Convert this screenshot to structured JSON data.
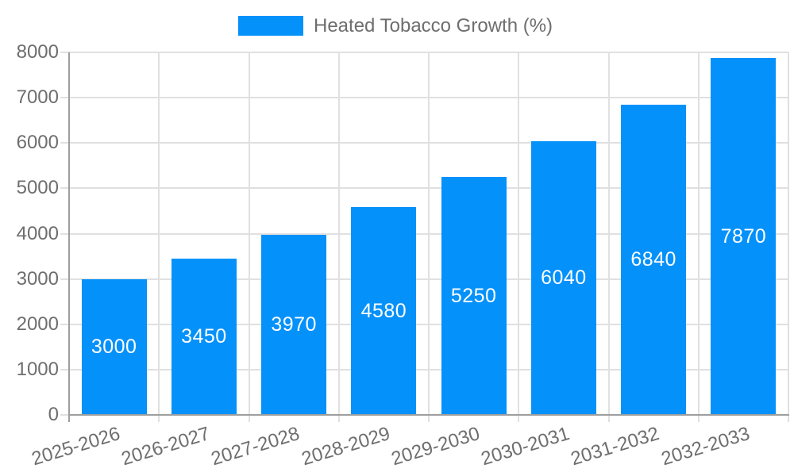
{
  "legend": {
    "label": "Heated Tobacco Growth (%)"
  },
  "colors": {
    "bar": "#0591fa",
    "grid": "#e0e0e0",
    "axis": "#9e9e9e",
    "tick_label": "#6e6e6e",
    "legend_label": "#6e6e6e",
    "bar_label": "#ffffff",
    "background": "#ffffff"
  },
  "chart_data": {
    "type": "bar",
    "title": "",
    "xlabel": "",
    "ylabel": "",
    "categories": [
      "2025-2026",
      "2026-2027",
      "2027-2028",
      "2028-2029",
      "2029-2030",
      "2030-2031",
      "2031-2032",
      "2032-2033"
    ],
    "series": [
      {
        "name": "Heated Tobacco Growth (%)",
        "values": [
          3000,
          3450,
          3970,
          4580,
          5250,
          6040,
          6840,
          7870
        ]
      }
    ],
    "bar_value_labels_visible": true,
    "ylim": [
      0,
      8000
    ],
    "yticks": [
      0,
      1000,
      2000,
      3000,
      4000,
      5000,
      6000,
      7000,
      8000
    ],
    "grid": "both",
    "legend_position": "top-center",
    "x_label_rotation_deg": -17
  }
}
